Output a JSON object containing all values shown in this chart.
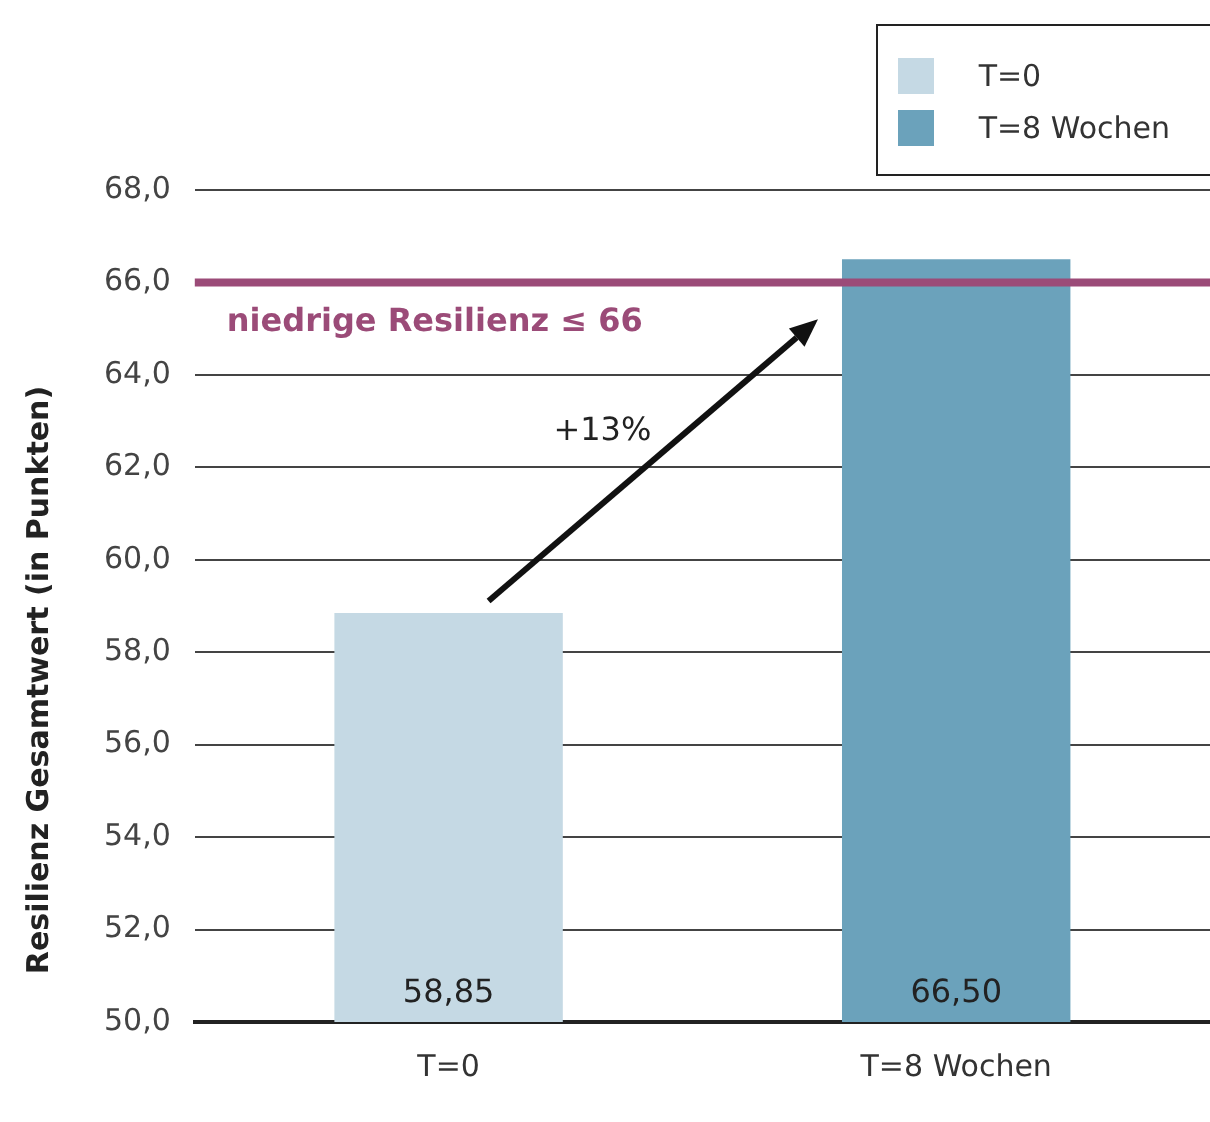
{
  "chart_data": {
    "type": "bar",
    "ylabel": "Resilienz Gesamtwert (in Punkten)",
    "categories": [
      "T=0",
      "T=8 Wochen"
    ],
    "series": [
      {
        "name": "T=0",
        "color": "#c5d9e4",
        "values": [
          58.85,
          null
        ],
        "value_labels": [
          "58,85",
          null
        ]
      },
      {
        "name": "T=8 Wochen",
        "color": "#6ba2bb",
        "values": [
          null,
          66.5
        ],
        "value_labels": [
          null,
          "66,50"
        ]
      }
    ],
    "ylim": [
      50,
      68
    ],
    "yticks": [
      {
        "value": 50,
        "label": "50,0"
      },
      {
        "value": 52,
        "label": "52,0"
      },
      {
        "value": 54,
        "label": "54,0"
      },
      {
        "value": 56,
        "label": "56,0"
      },
      {
        "value": 58,
        "label": "58,0"
      },
      {
        "value": 60,
        "label": "60,0"
      },
      {
        "value": 62,
        "label": "62,0"
      },
      {
        "value": 64,
        "label": "64,0"
      },
      {
        "value": 66,
        "label": "66,0"
      },
      {
        "value": 68,
        "label": "68,0"
      }
    ],
    "ref_lines": [
      {
        "axis": "y",
        "value": 66,
        "label": "niedrige Resilienz ≤ 66",
        "color": "#9b4b78"
      }
    ],
    "annotations": [
      "+13%"
    ],
    "grid": "y",
    "legend": "top right"
  }
}
